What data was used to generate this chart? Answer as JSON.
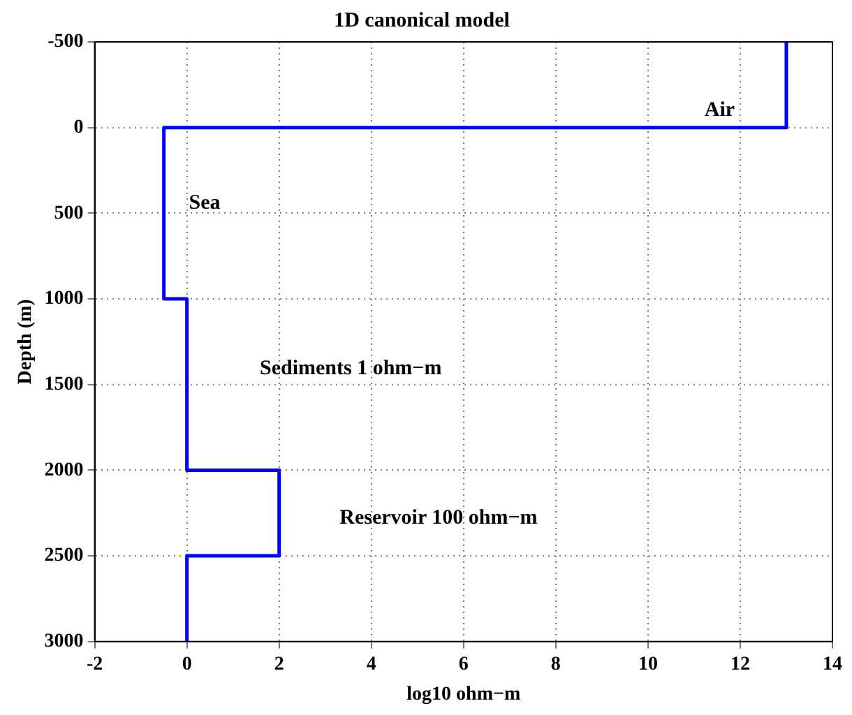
{
  "chart_data": {
    "type": "line",
    "title": "1D canonical model",
    "xlabel": "log10 ohm−m",
    "ylabel": "Depth (m)",
    "series": [
      {
        "x": [
          13,
          13,
          -0.5,
          -0.5,
          0,
          0,
          2,
          2,
          0,
          0
        ],
        "values": [
          -500,
          0,
          0,
          1000,
          1000,
          2000,
          2000,
          2500,
          2500,
          3000
        ],
        "color": "#0000ff"
      }
    ],
    "xlim": [
      -2,
      14
    ],
    "xticks": [
      -2,
      0,
      2,
      4,
      6,
      8,
      10,
      12,
      14
    ],
    "ylim": [
      3000,
      -500
    ],
    "yticks": [
      -500,
      0,
      500,
      1000,
      1500,
      2000,
      2500,
      3000
    ],
    "grid": true,
    "legend": false,
    "marker": "none",
    "line_style": "solid",
    "annotations": [
      "Air",
      "Sea",
      "Sediments 1 ohm−m",
      "Reservoir 100 ohm−m"
    ]
  }
}
